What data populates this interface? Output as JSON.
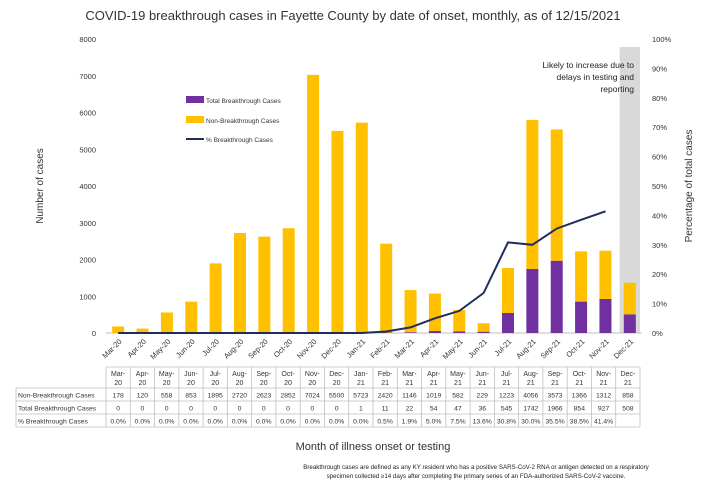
{
  "chart_data": {
    "type": "bar",
    "title": "COVID-19 breakthrough cases in Fayette County by date of onset, monthly, as of 12/15/2021",
    "xlabel": "Month of illness onset or testing",
    "ylabel": "Number of cases",
    "y2label": "Percentage of total cases",
    "ylim": [
      0,
      8000
    ],
    "y2lim": [
      0,
      100
    ],
    "yticks": [
      "0",
      "1000",
      "2000",
      "3000",
      "4000",
      "5000",
      "6000",
      "7000",
      "8000"
    ],
    "y2ticks": [
      "0%",
      "10%",
      "20%",
      "30%",
      "40%",
      "50%",
      "60%",
      "70%",
      "80%",
      "90%",
      "100%"
    ],
    "categories": [
      "Mar-20",
      "Apr-20",
      "May-20",
      "Jun-20",
      "Jul-20",
      "Aug-20",
      "Sep-20",
      "Oct-20",
      "Nov-20",
      "Dec-20",
      "Jan-21",
      "Feb-21",
      "Mar-21",
      "Apr-21",
      "May-21",
      "Jun-21",
      "Jul-21",
      "Aug-21",
      "Sep-21",
      "Oct-21",
      "Nov-21",
      "Dec-21"
    ],
    "table_categories": [
      [
        "Mar-",
        "20"
      ],
      [
        "Apr-",
        "20"
      ],
      [
        "May-",
        "20"
      ],
      [
        "Jun-",
        "20"
      ],
      [
        "Jul-",
        "20"
      ],
      [
        "Aug-",
        "20"
      ],
      [
        "Sep-",
        "20"
      ],
      [
        "Oct-",
        "20"
      ],
      [
        "Nov-",
        "20"
      ],
      [
        "Dec-",
        "20"
      ],
      [
        "Jan-",
        "21"
      ],
      [
        "Feb-",
        "21"
      ],
      [
        "Mar-",
        "21"
      ],
      [
        "Apr-",
        "21"
      ],
      [
        "May-",
        "21"
      ],
      [
        "Jun-",
        "21"
      ],
      [
        "Jul-",
        "21"
      ],
      [
        "Aug-",
        "21"
      ],
      [
        "Sep-",
        "21"
      ],
      [
        "Oct-",
        "21"
      ],
      [
        "Nov-",
        "21"
      ],
      [
        "Dec-",
        "21"
      ]
    ],
    "series": [
      {
        "name": "Total Breakthrough Cases",
        "color": "#7030A0",
        "kind": "stacked-bar",
        "values": [
          0,
          0,
          0,
          0,
          0,
          0,
          0,
          0,
          0,
          0,
          1,
          11,
          22,
          54,
          47,
          36,
          545,
          1742,
          1966,
          854,
          927,
          508
        ]
      },
      {
        "name": "Non-Breakthrough Cases",
        "color": "#FFC000",
        "kind": "stacked-bar",
        "values": [
          178,
          120,
          558,
          853,
          1895,
          2720,
          2623,
          2852,
          7024,
          5500,
          5723,
          2420,
          1146,
          1019,
          582,
          229,
          1223,
          4056,
          3573,
          1366,
          1312,
          858
        ]
      },
      {
        "name": "% Breakthrough Cases",
        "color": "#1F2D5A",
        "kind": "line",
        "axis": "right",
        "values": [
          0,
          0,
          0,
          0,
          0,
          0,
          0,
          0,
          0,
          0,
          0,
          0.5,
          1.9,
          5.0,
          7.5,
          13.6,
          30.8,
          30.0,
          35.5,
          38.5,
          41.4,
          null
        ]
      }
    ],
    "legend_labels": [
      "Total Breakthrough Cases",
      "Non-Breakthrough Cases",
      "% Breakthrough Cases"
    ],
    "table": {
      "rows": [
        {
          "label": "Non-Breakthrough Cases",
          "values": [
            "178",
            "120",
            "558",
            "853",
            "1895",
            "2720",
            "2623",
            "2852",
            "7024",
            "5500",
            "5723",
            "2420",
            "1146",
            "1019",
            "582",
            "229",
            "1223",
            "4056",
            "3573",
            "1366",
            "1312",
            "858"
          ]
        },
        {
          "label": "Total Breakthrough Cases",
          "values": [
            "0",
            "0",
            "0",
            "0",
            "0",
            "0",
            "0",
            "0",
            "0",
            "0",
            "1",
            "11",
            "22",
            "54",
            "47",
            "36",
            "545",
            "1742",
            "1966",
            "854",
            "927",
            "508"
          ]
        },
        {
          "label": "% Breakthrough Cases",
          "values": [
            "0.0%",
            "0.0%",
            "0.0%",
            "0.0%",
            "0.0%",
            "0.0%",
            "0.0%",
            "0.0%",
            "0.0%",
            "0.0%",
            "0.0%",
            "0.5%",
            "1.9%",
            "5.0%",
            "7.5%",
            "13.6%",
            "30.8%",
            "30.0%",
            "35.5%",
            "38.5%",
            "41.4%",
            ""
          ]
        }
      ]
    },
    "shaded_category": "Dec-21",
    "shade_color": "#D9D9D9",
    "annotation": "Likely to increase due to delays in testing and reporting",
    "annotation_lines": [
      "Likely to increase due to",
      "delays in testing and",
      "reporting"
    ],
    "grid": false,
    "legend_position": "upper-left"
  },
  "footnote_lines": [
    "Breakthrough cases are defined as any KY resident who has a positive SARS-CoV-2 RNA or antigen detected on a respiratory",
    "specimen collected ≥14 days after completing the primary series of an FDA-authorized SARS-CoV-2 vaccine."
  ]
}
